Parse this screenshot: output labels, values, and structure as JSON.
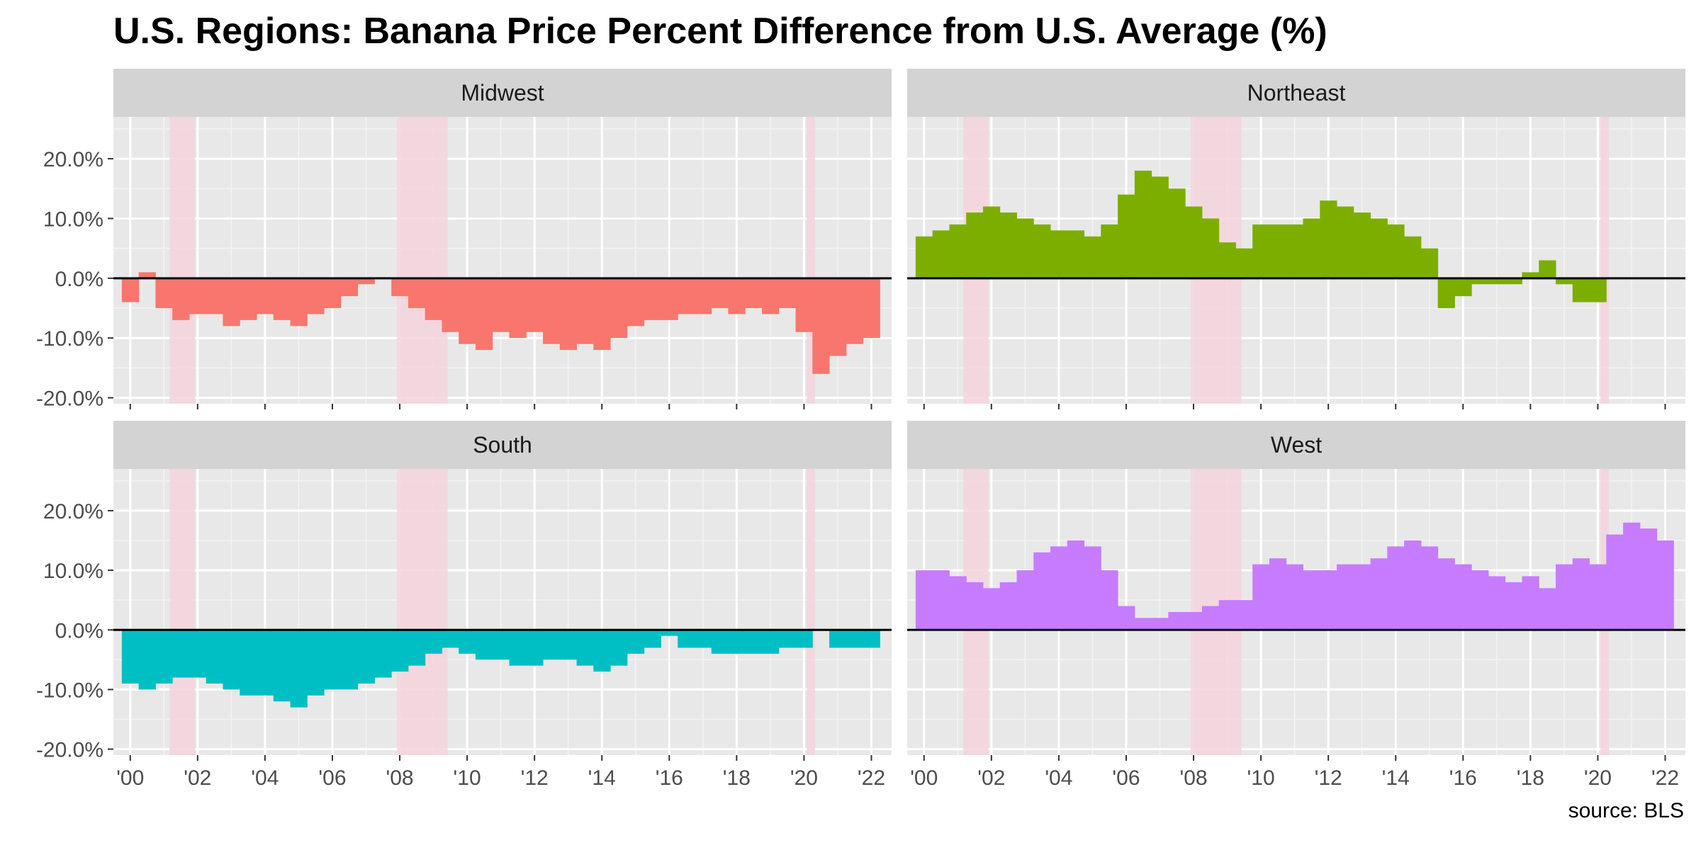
{
  "title": "U.S. Regions: Banana Price Percent Difference from U.S. Average (%)",
  "caption": "source: BLS",
  "chart_data": {
    "type": "bar",
    "facets": [
      "Midwest",
      "Northeast",
      "South",
      "West"
    ],
    "x_range": [
      1999.5,
      2022.6
    ],
    "x_ticks": [
      2000,
      2002,
      2004,
      2006,
      2008,
      2010,
      2012,
      2014,
      2016,
      2018,
      2020,
      2022
    ],
    "x_tick_labels": [
      "'00",
      "'02",
      "'04",
      "'06",
      "'08",
      "'10",
      "'12",
      "'14",
      "'16",
      "'18",
      "'20",
      "'22"
    ],
    "y_range": [
      -21,
      27
    ],
    "y_ticks": [
      -20,
      -10,
      0,
      10,
      20
    ],
    "y_tick_labels": [
      "-20.0%",
      "-10.0%",
      "0.0%",
      "10.0%",
      "20.0%"
    ],
    "recessions": [
      [
        2001.17,
        2001.92
      ],
      [
        2007.92,
        2009.42
      ],
      [
        2020.08,
        2020.33
      ]
    ],
    "colors": {
      "Midwest": "#F8766D",
      "Northeast": "#7CAE00",
      "South": "#00BFC4",
      "West": "#C77CFF",
      "recession": "#f4d3dc",
      "panel_bg": "#e8e8e8",
      "strip_bg": "#d3d3d3"
    },
    "series": [
      {
        "name": "Midwest",
        "x": [
          2000.0,
          2000.5,
          2001.0,
          2001.5,
          2002.0,
          2002.5,
          2003.0,
          2003.5,
          2004.0,
          2004.5,
          2005.0,
          2005.5,
          2006.0,
          2006.5,
          2007.0,
          2007.5,
          2008.0,
          2008.5,
          2009.0,
          2009.5,
          2010.0,
          2010.5,
          2011.0,
          2011.5,
          2012.0,
          2012.5,
          2013.0,
          2013.5,
          2014.0,
          2014.5,
          2015.0,
          2015.5,
          2016.0,
          2016.5,
          2017.0,
          2017.5,
          2018.0,
          2018.5,
          2019.0,
          2019.5,
          2020.0,
          2020.5,
          2021.0,
          2021.5,
          2022.0
        ],
        "y": [
          -4,
          1,
          -5,
          -7,
          -6,
          -6,
          -8,
          -7,
          -6,
          -7,
          -8,
          -6,
          -5,
          -3,
          -1,
          0,
          -3,
          -5,
          -7,
          -9,
          -11,
          -12,
          -9,
          -10,
          -9,
          -11,
          -12,
          -11,
          -12,
          -10,
          -8,
          -7,
          -7,
          -6,
          -6,
          -5,
          -6,
          -5,
          -6,
          -5,
          -9,
          -16,
          -13,
          -11,
          -10
        ]
      },
      {
        "name": "Northeast",
        "x": [
          2000.0,
          2000.5,
          2001.0,
          2001.5,
          2002.0,
          2002.5,
          2003.0,
          2003.5,
          2004.0,
          2004.5,
          2005.0,
          2005.5,
          2006.0,
          2006.5,
          2007.0,
          2007.5,
          2008.0,
          2008.5,
          2009.0,
          2009.5,
          2010.0,
          2010.5,
          2011.0,
          2011.5,
          2012.0,
          2012.5,
          2013.0,
          2013.5,
          2014.0,
          2014.5,
          2015.0,
          2015.5,
          2016.0,
          2016.5,
          2017.0,
          2017.5,
          2018.0,
          2018.5,
          2019.0,
          2019.5,
          2020.0
        ],
        "y": [
          7,
          8,
          9,
          11,
          12,
          11,
          10,
          9,
          8,
          8,
          7,
          9,
          14,
          18,
          17,
          15,
          12,
          10,
          6,
          5,
          9,
          9,
          9,
          10,
          13,
          12,
          11,
          10,
          9,
          7,
          5,
          -5,
          -3,
          -1,
          -1,
          -1,
          1,
          3,
          -1,
          -4,
          -4
        ]
      },
      {
        "name": "South",
        "x": [
          2000.0,
          2000.5,
          2001.0,
          2001.5,
          2002.0,
          2002.5,
          2003.0,
          2003.5,
          2004.0,
          2004.5,
          2005.0,
          2005.5,
          2006.0,
          2006.5,
          2007.0,
          2007.5,
          2008.0,
          2008.5,
          2009.0,
          2009.5,
          2010.0,
          2010.5,
          2011.0,
          2011.5,
          2012.0,
          2012.5,
          2013.0,
          2013.5,
          2014.0,
          2014.5,
          2015.0,
          2015.5,
          2016.0,
          2016.5,
          2017.0,
          2017.5,
          2018.0,
          2018.5,
          2019.0,
          2019.5,
          2020.0,
          2020.5,
          2021.0,
          2021.5,
          2022.0
        ],
        "y": [
          -9,
          -10,
          -9,
          -8,
          -8,
          -9,
          -10,
          -11,
          -11,
          -12,
          -13,
          -11,
          -10,
          -10,
          -9,
          -8,
          -7,
          -6,
          -4,
          -3,
          -4,
          -5,
          -5,
          -6,
          -6,
          -5,
          -5,
          -6,
          -7,
          -6,
          -4,
          -3,
          -1,
          -3,
          -3,
          -4,
          -4,
          -4,
          -4,
          -3,
          -3,
          0,
          -3,
          -3,
          -3
        ]
      },
      {
        "name": "West",
        "x": [
          2000.0,
          2000.5,
          2001.0,
          2001.5,
          2002.0,
          2002.5,
          2003.0,
          2003.5,
          2004.0,
          2004.5,
          2005.0,
          2005.5,
          2006.0,
          2006.5,
          2007.0,
          2007.5,
          2008.0,
          2008.5,
          2009.0,
          2009.5,
          2010.0,
          2010.5,
          2011.0,
          2011.5,
          2012.0,
          2012.5,
          2013.0,
          2013.5,
          2014.0,
          2014.5,
          2015.0,
          2015.5,
          2016.0,
          2016.5,
          2017.0,
          2017.5,
          2018.0,
          2018.5,
          2019.0,
          2019.5,
          2020.0,
          2020.5,
          2021.0,
          2021.5,
          2022.0
        ],
        "y": [
          10,
          10,
          9,
          8,
          7,
          8,
          10,
          13,
          14,
          15,
          14,
          10,
          4,
          2,
          2,
          3,
          3,
          4,
          5,
          5,
          11,
          12,
          11,
          10,
          10,
          11,
          11,
          12,
          14,
          15,
          14,
          12,
          11,
          10,
          9,
          8,
          9,
          7,
          11,
          12,
          11,
          16,
          18,
          17,
          15
        ]
      }
    ]
  }
}
